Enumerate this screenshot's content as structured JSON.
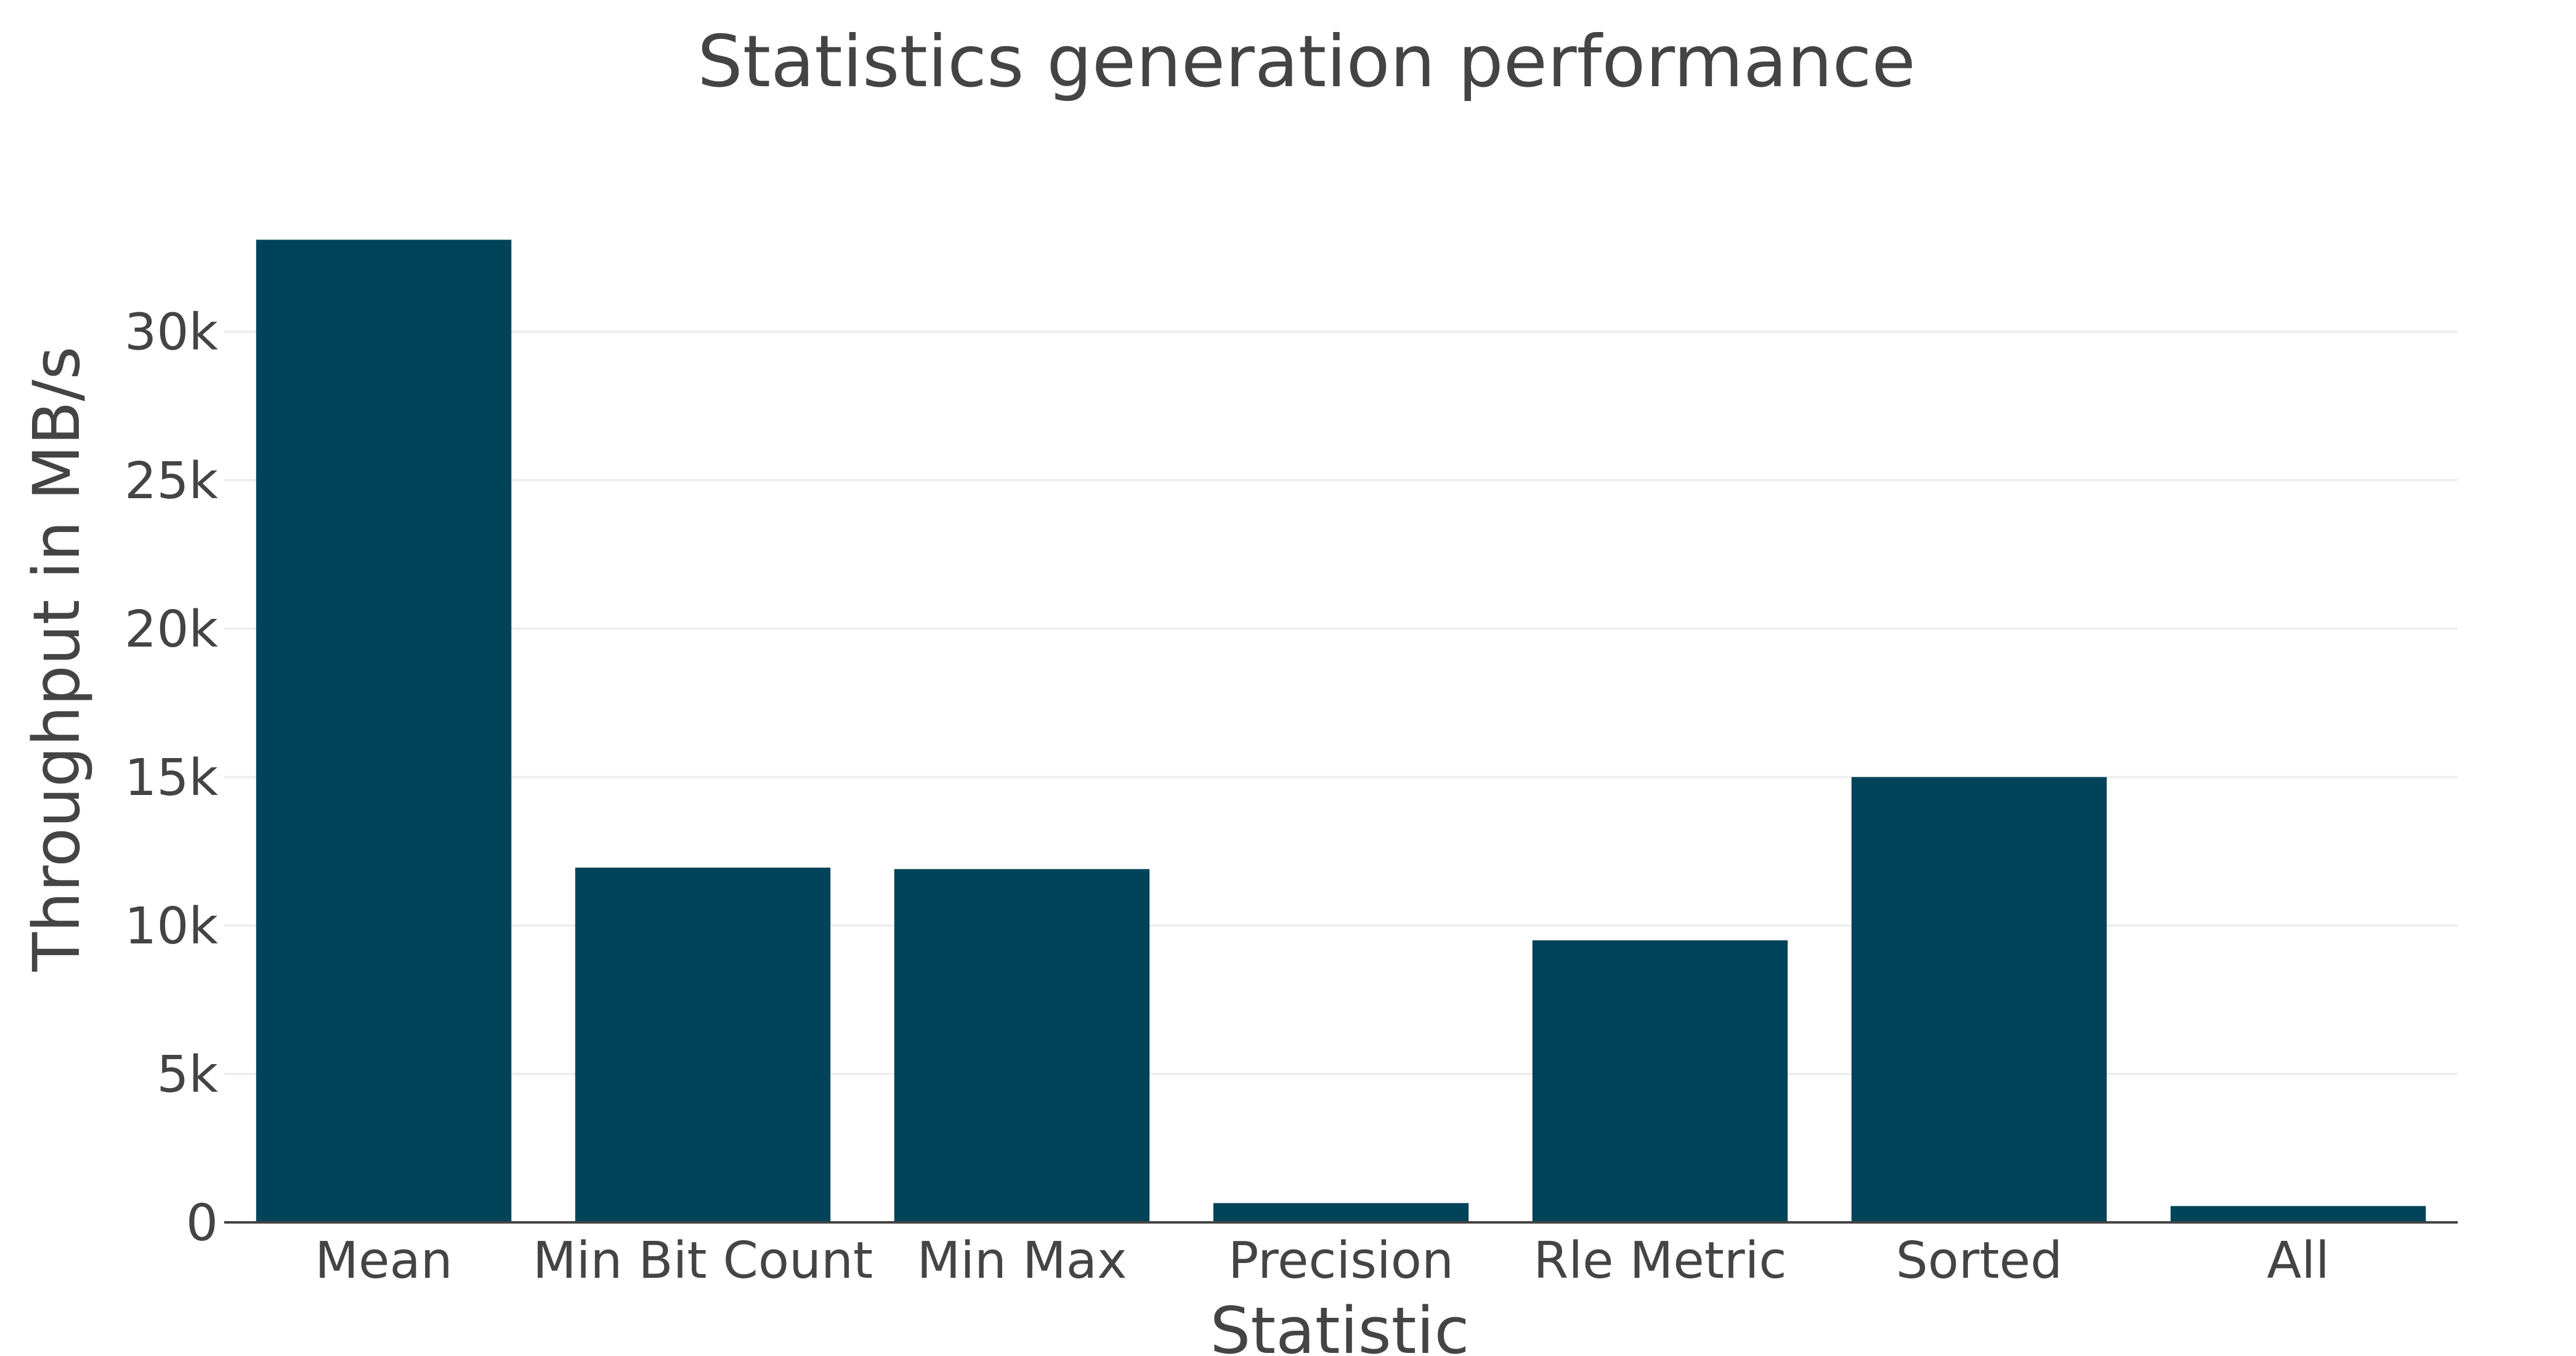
{
  "chart_data": {
    "type": "bar",
    "title": "Statistics generation performance",
    "xlabel": "Statistic",
    "ylabel": "Throughput in MB/s",
    "categories": [
      "Mean",
      "Min Bit Count",
      "Min Max",
      "Precision",
      "Rle Metric",
      "Sorted",
      "All"
    ],
    "values": [
      33100,
      11950,
      11900,
      650,
      9500,
      15000,
      550
    ],
    "ylim": [
      0,
      33500
    ],
    "yticks": [
      0,
      5000,
      10000,
      15000,
      20000,
      25000,
      30000
    ],
    "ytick_labels": [
      "0",
      "5k",
      "10k",
      "15k",
      "20k",
      "25k",
      "30k"
    ],
    "grid": true,
    "legend": "none",
    "colors": {
      "bar": "#01445a",
      "text": "#444444",
      "grid": "#eeeeee"
    }
  }
}
